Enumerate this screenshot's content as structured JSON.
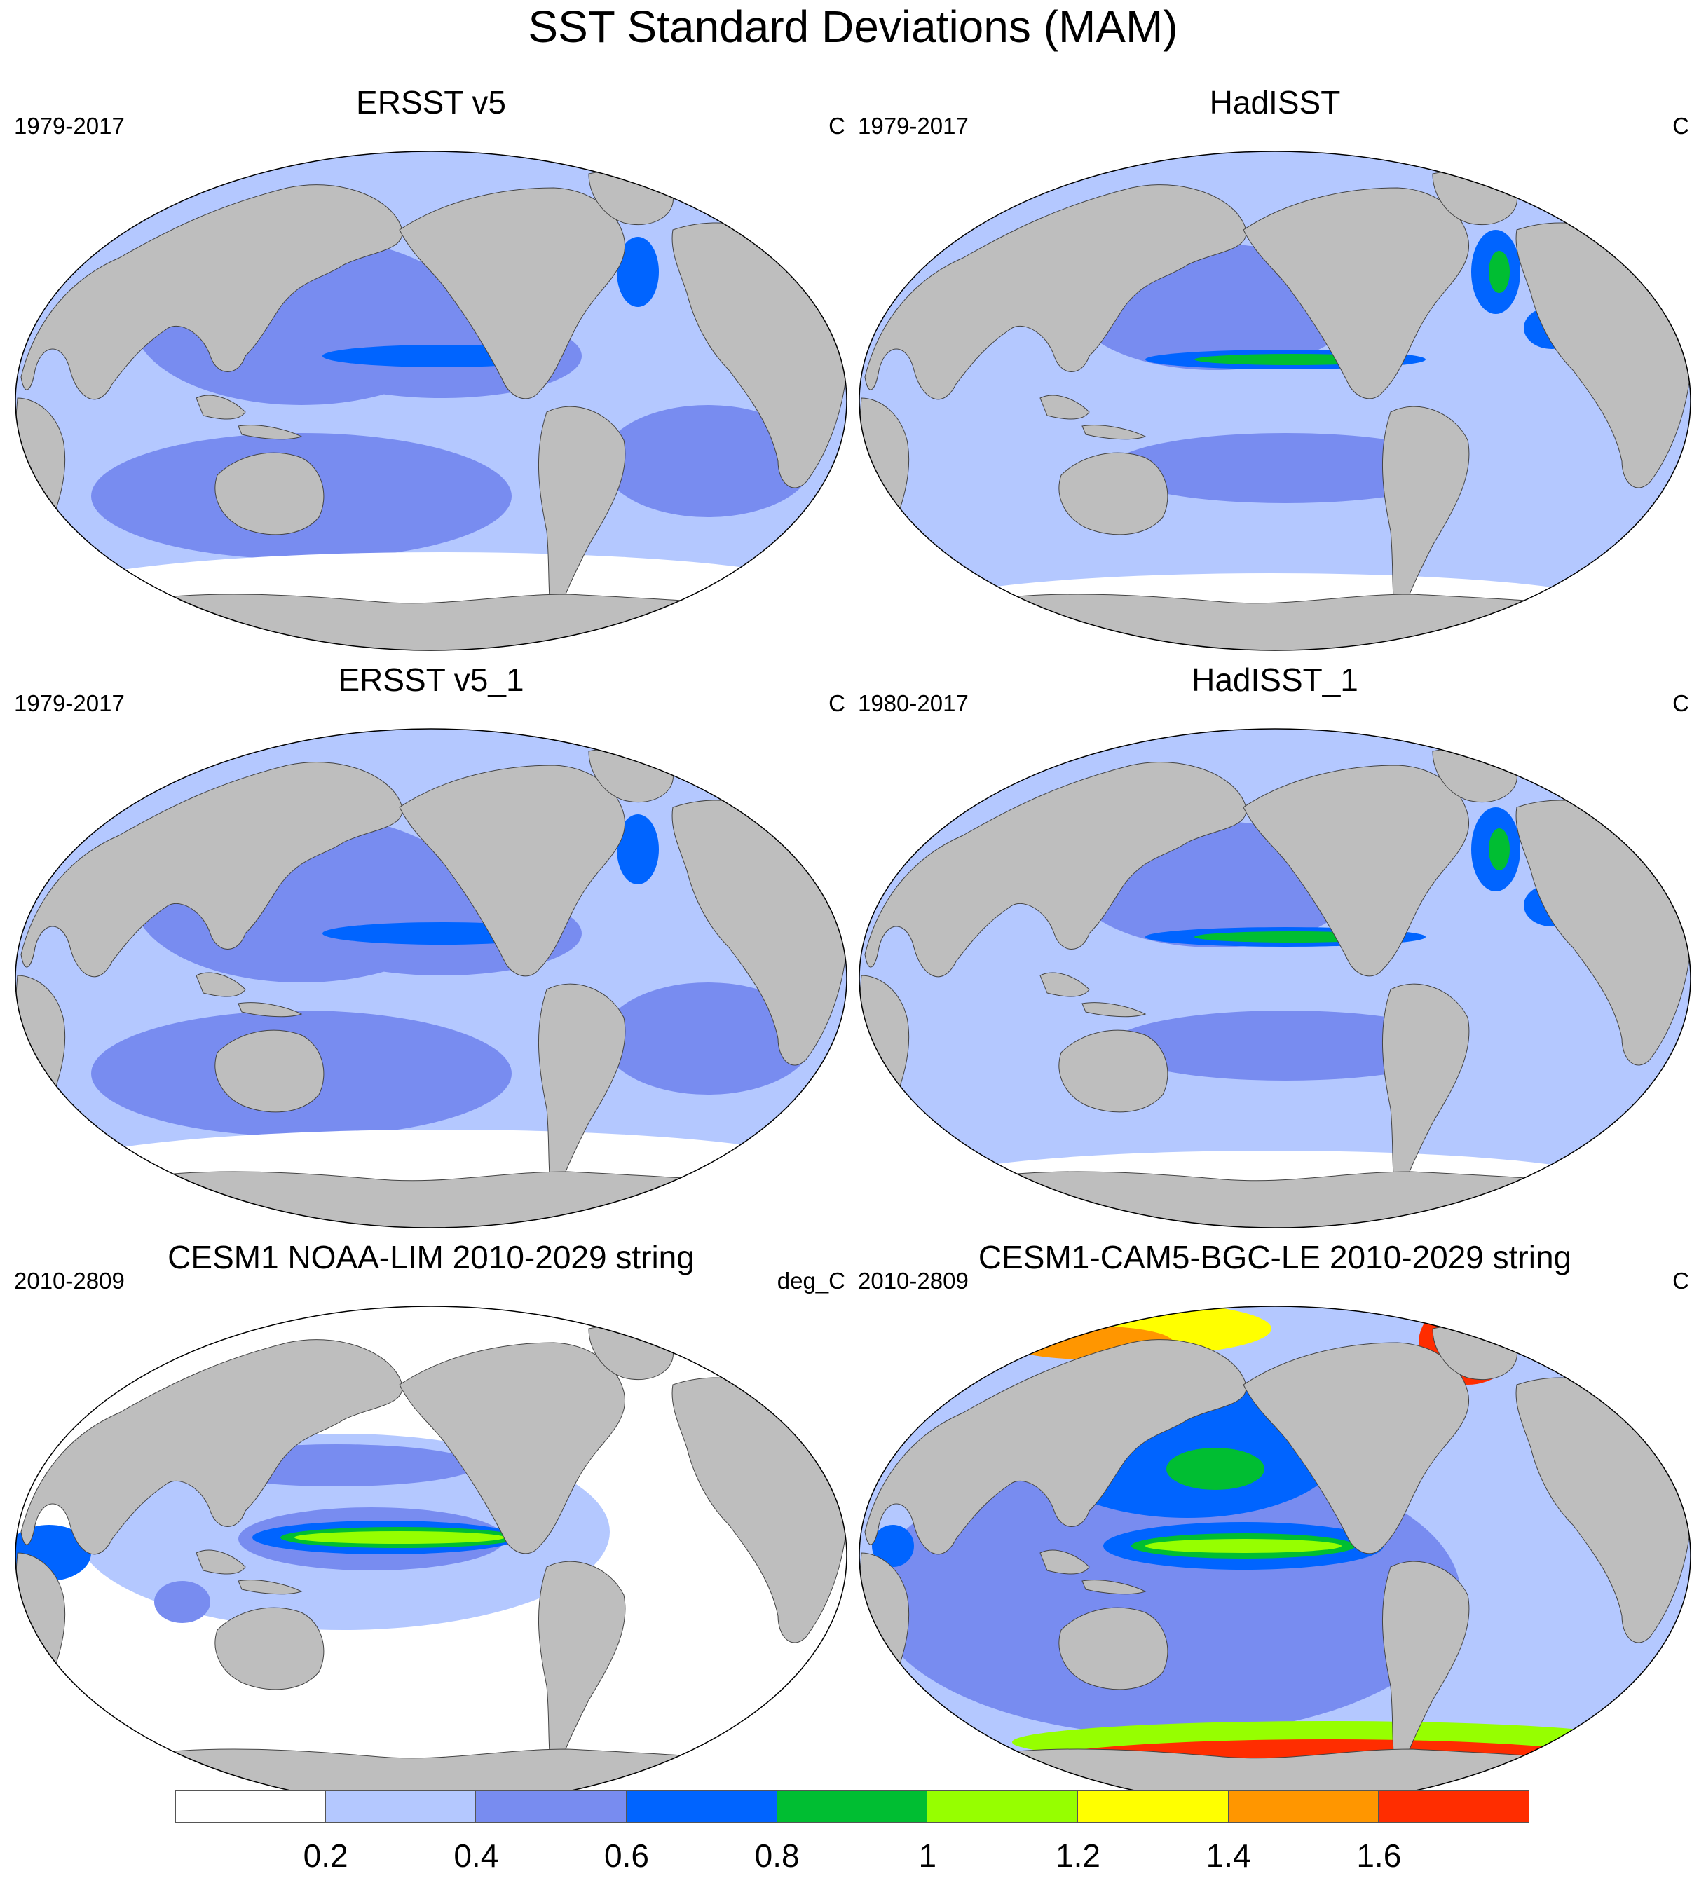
{
  "title": "SST Standard Deviations (MAM)",
  "colors": {
    "land": "#bebebe",
    "levels": [
      "#ffffff",
      "#b4c8ff",
      "#788cf0",
      "#0064ff",
      "#00be32",
      "#96ff00",
      "#ffff00",
      "#ff9600",
      "#ff2d00"
    ]
  },
  "colorbar": {
    "labels": [
      "0.2",
      "0.4",
      "0.6",
      "0.8",
      "1",
      "1.2",
      "1.4",
      "1.6"
    ]
  },
  "panels": [
    {
      "title": "ERSST v5",
      "years": "1979-2017",
      "units": "C",
      "pattern": "ersst"
    },
    {
      "title": "HadISST",
      "years": "1979-2017",
      "units": "C",
      "pattern": "hadisst"
    },
    {
      "title": "ERSST v5_1",
      "years": "1979-2017",
      "units": "C",
      "pattern": "ersst"
    },
    {
      "title": "HadISST_1",
      "years": "1980-2017",
      "units": "C",
      "pattern": "hadisst"
    },
    {
      "title": "CESM1 NOAA-LIM 2010-2029 string",
      "years": "2010-2809",
      "units": "deg_C",
      "pattern": "lim"
    },
    {
      "title": "CESM1-CAM5-BGC-LE 2010-2029 string",
      "years": "2010-2809",
      "units": "C",
      "pattern": "cesm"
    }
  ]
}
